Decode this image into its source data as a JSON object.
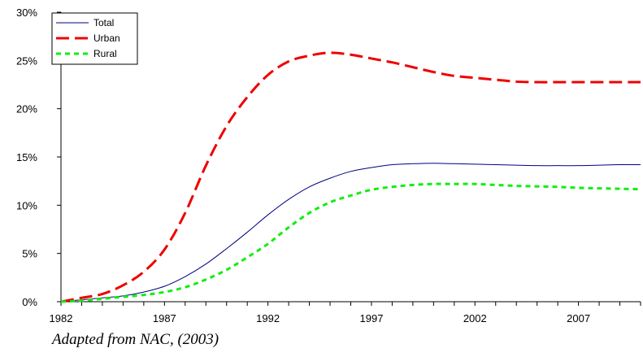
{
  "caption": "Adapted from NAC, (2003)",
  "chart_data": {
    "type": "line",
    "title": "",
    "xlabel": "",
    "ylabel": "",
    "xlim": [
      1982,
      2010
    ],
    "ylim": [
      0,
      30
    ],
    "x_ticks": [
      1982,
      1987,
      1992,
      1997,
      2002,
      2007
    ],
    "y_ticks": [
      0,
      5,
      10,
      15,
      20,
      25,
      30
    ],
    "y_tick_labels": [
      "0%",
      "5%",
      "10%",
      "15%",
      "20%",
      "25%",
      "30%"
    ],
    "grid": false,
    "legend_position": "top-left",
    "x": [
      1982,
      1983,
      1984,
      1985,
      1986,
      1987,
      1988,
      1989,
      1990,
      1991,
      1992,
      1993,
      1994,
      1995,
      1996,
      1997,
      1998,
      1999,
      2000,
      2001,
      2002,
      2003,
      2004,
      2005,
      2006,
      2007,
      2008,
      2009,
      2010
    ],
    "series": [
      {
        "name": "Total",
        "color": "#000080",
        "style": "solid",
        "values": [
          0,
          0.2,
          0.4,
          0.6,
          1.0,
          1.6,
          2.6,
          3.9,
          5.5,
          7.2,
          9.0,
          10.6,
          11.9,
          12.8,
          13.5,
          13.9,
          14.2,
          14.3,
          14.35,
          14.3,
          14.25,
          14.2,
          14.15,
          14.1,
          14.1,
          14.1,
          14.15,
          14.2,
          14.2
        ]
      },
      {
        "name": "Urban",
        "color": "#ee0000",
        "style": "long-dash",
        "values": [
          0,
          0.4,
          0.8,
          1.7,
          3.1,
          5.4,
          9.2,
          14.1,
          18.2,
          21.2,
          23.5,
          24.9,
          25.5,
          25.8,
          25.6,
          25.2,
          24.8,
          24.3,
          23.8,
          23.4,
          23.2,
          23.0,
          22.8,
          22.75,
          22.75,
          22.75,
          22.75,
          22.75,
          22.75
        ]
      },
      {
        "name": "Rural",
        "color": "#11ee11",
        "style": "short-dash",
        "values": [
          0,
          0.1,
          0.3,
          0.5,
          0.7,
          1.0,
          1.5,
          2.3,
          3.3,
          4.6,
          6.0,
          7.7,
          9.2,
          10.3,
          11.0,
          11.6,
          11.9,
          12.1,
          12.2,
          12.2,
          12.2,
          12.1,
          12.0,
          11.95,
          11.9,
          11.8,
          11.75,
          11.7,
          11.65
        ]
      }
    ]
  }
}
